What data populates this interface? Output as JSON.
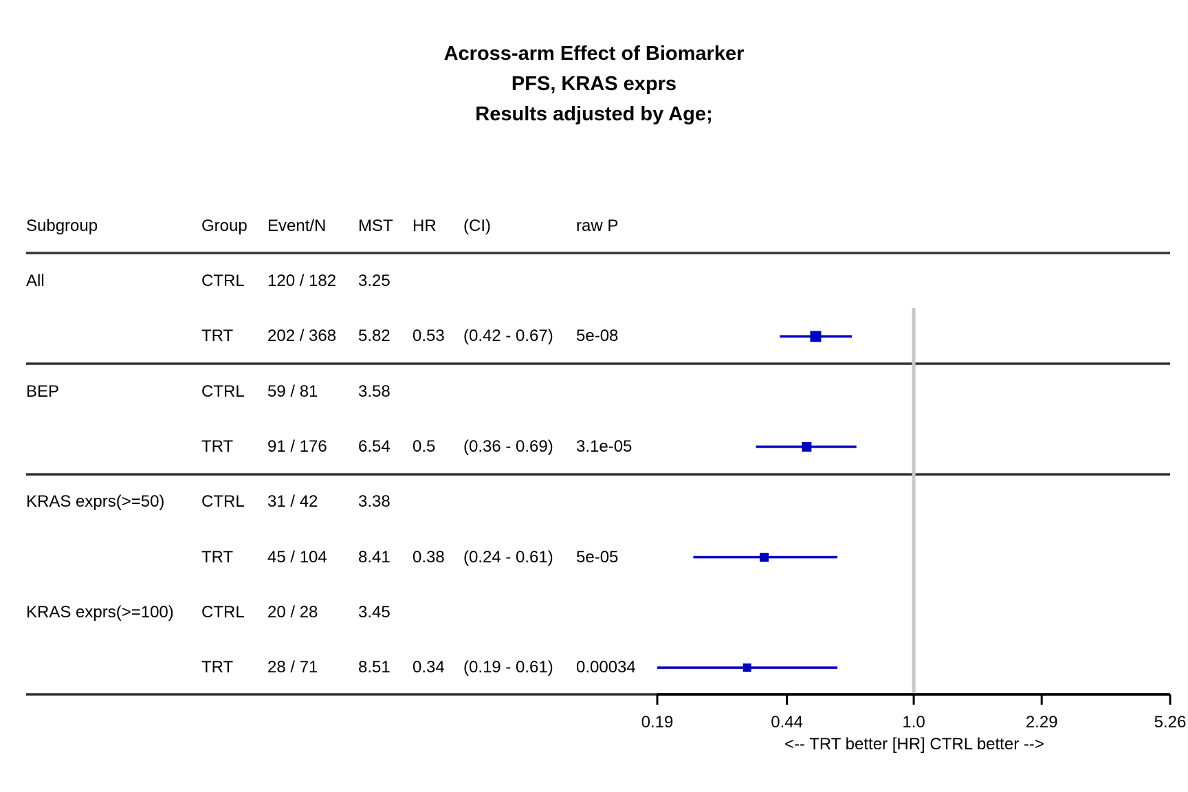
{
  "titles": {
    "line1": "Across-arm Effect of Biomarker",
    "line2": "PFS, KRAS exprs",
    "line3": "Results adjusted by Age;"
  },
  "headers": {
    "subgroup": "Subgroup",
    "group": "Group",
    "event_n": "Event/N",
    "mst": "MST",
    "hr": "HR",
    "ci": "(CI)",
    "raw_p": "raw P"
  },
  "rows": [
    {
      "subgroup": "All",
      "group": "CTRL",
      "event_n": "120 / 182",
      "mst": "3.25",
      "hr": "",
      "ci": "",
      "raw_p": ""
    },
    {
      "subgroup": "",
      "group": "TRT",
      "event_n": "202 / 368",
      "mst": "5.82",
      "hr": "0.53",
      "ci": "(0.42 - 0.67)",
      "raw_p": "5e-08"
    },
    {
      "subgroup": "BEP",
      "group": "CTRL",
      "event_n": "59 / 81",
      "mst": "3.58",
      "hr": "",
      "ci": "",
      "raw_p": ""
    },
    {
      "subgroup": "",
      "group": "TRT",
      "event_n": "91 / 176",
      "mst": "6.54",
      "hr": "0.5",
      "ci": "(0.36 - 0.69)",
      "raw_p": "3.1e-05"
    },
    {
      "subgroup": "KRAS exprs(>=50)",
      "group": "CTRL",
      "event_n": "31 / 42",
      "mst": "3.38",
      "hr": "",
      "ci": "",
      "raw_p": ""
    },
    {
      "subgroup": "",
      "group": "TRT",
      "event_n": "45 / 104",
      "mst": "8.41",
      "hr": "0.38",
      "ci": "(0.24 - 0.61)",
      "raw_p": "5e-05"
    },
    {
      "subgroup": "KRAS exprs(>=100)",
      "group": "CTRL",
      "event_n": "20 / 28",
      "mst": "3.45",
      "hr": "",
      "ci": "",
      "raw_p": ""
    },
    {
      "subgroup": "",
      "group": "TRT",
      "event_n": "28 / 71",
      "mst": "8.51",
      "hr": "0.34",
      "ci": "(0.19 - 0.61)",
      "raw_p": "0.00034"
    }
  ],
  "chart_data": {
    "type": "forest",
    "scale": "log",
    "xlim": [
      0.19,
      5.26
    ],
    "ticks": [
      "0.19",
      "0.44",
      "1.0",
      "2.29",
      "5.26"
    ],
    "reference_line": 1.0,
    "xlabel": "<--  TRT better [HR]  CTRL better -->",
    "estimates": [
      {
        "row": 1,
        "hr": 0.53,
        "lower": 0.42,
        "upper": 0.67
      },
      {
        "row": 3,
        "hr": 0.5,
        "lower": 0.36,
        "upper": 0.69
      },
      {
        "row": 5,
        "hr": 0.38,
        "lower": 0.24,
        "upper": 0.61
      },
      {
        "row": 7,
        "hr": 0.34,
        "lower": 0.19,
        "upper": 0.61
      }
    ],
    "colors": {
      "estimate": "#0000c0",
      "reference": "#c8c8c8",
      "rule": "#333333",
      "axis": "#000000"
    }
  }
}
